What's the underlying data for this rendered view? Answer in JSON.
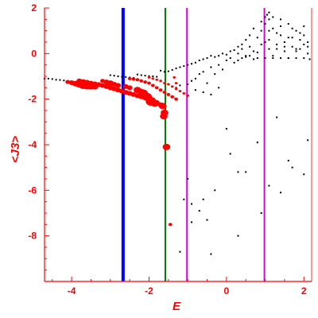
{
  "chart_data": {
    "type": "scatter",
    "title": "",
    "xlabel": "E",
    "ylabel": "<J3>",
    "xlim": [
      -4.7,
      2.2
    ],
    "ylim": [
      -10,
      2
    ],
    "x_ticks": [
      -4,
      -2,
      0,
      2
    ],
    "y_ticks": [
      2,
      0,
      -2,
      -4,
      -6,
      -8
    ],
    "x_tick_labels": [
      "-4",
      "-2",
      "0",
      "2"
    ],
    "y_tick_labels": [
      "2",
      "0",
      "-2",
      "-4",
      "-6",
      "-8"
    ],
    "grid": false,
    "legend": "none",
    "colors": {
      "axis": "#ff0000",
      "black_points": "#000000",
      "red_points": "#ff0000",
      "blue_line": "#0000ff",
      "green_line": "#007700",
      "magenta_line": "#dd00dd"
    },
    "vertical_lines": [
      {
        "x": -2.67,
        "color": "#0000ff"
      },
      {
        "x": -1.58,
        "color": "#007700"
      },
      {
        "x": -1.02,
        "color": "#dd00dd"
      },
      {
        "x": 0.98,
        "color": "#dd00dd"
      }
    ],
    "black_points": [
      [
        -4.7,
        -1.1
      ],
      [
        -4.6,
        -1.1
      ],
      [
        -4.5,
        -1.12
      ],
      [
        -4.4,
        -1.15
      ],
      [
        -4.3,
        -1.16
      ],
      [
        -4.2,
        -1.18
      ],
      [
        -4.1,
        -1.2
      ],
      [
        -3.0,
        -0.95
      ],
      [
        -2.9,
        -0.97
      ],
      [
        -2.8,
        -1.0
      ],
      [
        -2.7,
        -1.02
      ],
      [
        -2.6,
        -1.03
      ],
      [
        -2.5,
        -1.05
      ],
      [
        -2.4,
        -1.07
      ],
      [
        -2.3,
        -0.92
      ],
      [
        -2.2,
        -0.95
      ],
      [
        -2.1,
        -0.97
      ],
      [
        -2.0,
        -0.99
      ],
      [
        -1.9,
        -1.0
      ],
      [
        -1.8,
        -1.02
      ],
      [
        -1.7,
        -0.75
      ],
      [
        -1.6,
        -0.8
      ],
      [
        -1.5,
        -0.78
      ],
      [
        -1.4,
        -0.72
      ],
      [
        -1.3,
        -0.65
      ],
      [
        -1.2,
        -0.6
      ],
      [
        -1.1,
        -0.55
      ],
      [
        -1.0,
        -0.5
      ],
      [
        -0.9,
        -0.45
      ],
      [
        -0.8,
        -0.4
      ],
      [
        -0.7,
        -0.3
      ],
      [
        -0.6,
        -0.25
      ],
      [
        -0.5,
        -0.2
      ],
      [
        -0.4,
        -0.1
      ],
      [
        -1.3,
        -1.5
      ],
      [
        -1.2,
        -1.4
      ],
      [
        -1.0,
        -1.35
      ],
      [
        -0.9,
        -1.2
      ],
      [
        -0.8,
        -1.1
      ],
      [
        -0.7,
        -0.9
      ],
      [
        -0.6,
        -0.8
      ],
      [
        -0.5,
        -1.3
      ],
      [
        -0.4,
        -0.6
      ],
      [
        -0.3,
        -0.9
      ],
      [
        -0.2,
        -0.5
      ],
      [
        -0.1,
        -0.7
      ],
      [
        0.0,
        -0.3
      ],
      [
        0.1,
        -0.2
      ],
      [
        -0.3,
        -0.15
      ],
      [
        -0.2,
        -0.1
      ],
      [
        -0.1,
        0.0
      ],
      [
        0.0,
        -0.05
      ],
      [
        0.1,
        0.1
      ],
      [
        0.2,
        0.15
      ],
      [
        0.3,
        0.0
      ],
      [
        0.4,
        0.2
      ],
      [
        0.5,
        -0.1
      ],
      [
        0.6,
        0.3
      ],
      [
        0.7,
        0.1
      ],
      [
        0.8,
        -0.2
      ],
      [
        0.9,
        0.4
      ],
      [
        1.0,
        0.5
      ],
      [
        0.2,
        -0.4
      ],
      [
        0.3,
        -0.3
      ],
      [
        0.4,
        -0.2
      ],
      [
        0.5,
        -0.15
      ],
      [
        0.6,
        -0.1
      ],
      [
        0.7,
        -0.25
      ],
      [
        0.8,
        0.05
      ],
      [
        1.1,
        0.6
      ],
      [
        1.2,
        -0.1
      ],
      [
        1.3,
        0.2
      ],
      [
        1.4,
        0.8
      ],
      [
        1.5,
        0.3
      ],
      [
        1.6,
        -0.2
      ],
      [
        1.7,
        0.7
      ],
      [
        1.8,
        0.1
      ],
      [
        1.9,
        0.9
      ],
      [
        2.0,
        0.4
      ],
      [
        2.1,
        0.0
      ],
      [
        0.9,
        1.0
      ],
      [
        1.0,
        1.3
      ],
      [
        1.1,
        1.5
      ],
      [
        1.2,
        1.1
      ],
      [
        1.3,
        0.9
      ],
      [
        1.4,
        1.2
      ],
      [
        1.5,
        0.5
      ],
      [
        1.6,
        0.7
      ],
      [
        1.7,
        1.1
      ],
      [
        1.8,
        0.2
      ],
      [
        1.9,
        0.6
      ],
      [
        2.0,
        0.8
      ],
      [
        2.1,
        0.5
      ],
      [
        0.5,
        0.6
      ],
      [
        0.6,
        0.8
      ],
      [
        0.7,
        1.1
      ],
      [
        0.8,
        0.7
      ],
      [
        0.9,
        1.4
      ],
      [
        1.0,
        1.6
      ],
      [
        1.1,
        1.0
      ],
      [
        0.4,
        0.4
      ],
      [
        0.3,
        0.3
      ],
      [
        1.05,
        1.7
      ],
      [
        1.1,
        1.8
      ],
      [
        1.2,
        1.6
      ],
      [
        1.4,
        1.5
      ],
      [
        1.6,
        1.3
      ],
      [
        1.8,
        1.0
      ],
      [
        2.0,
        1.2
      ],
      [
        1.0,
        -0.2
      ],
      [
        1.2,
        -0.2
      ],
      [
        1.4,
        -0.2
      ],
      [
        1.6,
        -0.2
      ],
      [
        1.8,
        -0.2
      ],
      [
        2.0,
        -0.2
      ],
      [
        2.15,
        -0.25
      ],
      [
        1.1,
        0.2
      ],
      [
        1.3,
        0.4
      ],
      [
        1.5,
        0.1
      ],
      [
        1.7,
        0.3
      ],
      [
        1.9,
        0.2
      ],
      [
        2.1,
        0.3
      ],
      [
        -0.8,
        -1.6
      ],
      [
        -0.6,
        -1.7
      ],
      [
        -0.4,
        -1.8
      ],
      [
        -0.2,
        -1.5
      ],
      [
        0.0,
        -3.3
      ],
      [
        0.1,
        -4.4
      ],
      [
        0.3,
        -5.2
      ],
      [
        0.5,
        -5.2
      ],
      [
        0.8,
        -3.9
      ],
      [
        0.9,
        -7.0
      ],
      [
        1.1,
        -5.8
      ],
      [
        1.3,
        -2.8
      ],
      [
        1.6,
        -4.7
      ],
      [
        1.7,
        -5.0
      ],
      [
        1.4,
        -6.1
      ],
      [
        2.0,
        -5.3
      ],
      [
        2.1,
        -3.8
      ],
      [
        -1.0,
        -5.5
      ],
      [
        -1.1,
        -6.4
      ],
      [
        -0.9,
        -6.6
      ],
      [
        -0.6,
        -6.4
      ],
      [
        -0.5,
        -7.3
      ],
      [
        -0.3,
        -6.0
      ],
      [
        -0.7,
        -6.9
      ],
      [
        -1.2,
        -8.7
      ],
      [
        -0.4,
        -8.8
      ],
      [
        0.3,
        -8.0
      ],
      [
        -0.9,
        -7.4
      ]
    ],
    "red_points": [
      [
        -3.8,
        -1.2,
        3
      ],
      [
        -3.7,
        -1.23,
        3
      ],
      [
        -3.6,
        -1.26,
        3
      ],
      [
        -3.5,
        -1.3,
        3
      ],
      [
        -3.4,
        -1.33,
        3
      ],
      [
        -3.3,
        -1.36,
        3
      ],
      [
        -3.2,
        -1.4,
        3
      ],
      [
        -3.1,
        -1.45,
        3
      ],
      [
        -3.0,
        -1.5,
        3
      ],
      [
        -2.9,
        -1.55,
        3
      ],
      [
        -2.8,
        -1.6,
        3
      ],
      [
        -2.7,
        -1.65,
        3
      ],
      [
        -2.6,
        -1.7,
        3
      ],
      [
        -2.5,
        -1.75,
        3
      ],
      [
        -2.4,
        -1.8,
        3
      ],
      [
        -2.3,
        -1.85,
        3
      ],
      [
        -2.2,
        -1.9,
        3
      ],
      [
        -2.1,
        -1.95,
        3
      ],
      [
        -2.0,
        -2.0,
        3
      ],
      [
        -1.9,
        -2.05,
        3
      ],
      [
        -1.8,
        -2.15,
        3
      ],
      [
        -1.7,
        -2.25,
        3
      ],
      [
        -4.1,
        -1.25,
        2.5
      ],
      [
        -4.0,
        -1.28,
        3
      ],
      [
        -3.9,
        -1.32,
        3.5
      ],
      [
        -3.8,
        -1.36,
        4
      ],
      [
        -3.7,
        -1.4,
        4.5
      ],
      [
        -3.6,
        -1.42,
        4.5
      ],
      [
        -3.5,
        -1.44,
        4
      ],
      [
        -3.4,
        -1.46,
        3.5
      ],
      [
        -3.2,
        -1.2,
        2.5
      ],
      [
        -3.1,
        -1.25,
        3
      ],
      [
        -3.0,
        -1.3,
        3.5
      ],
      [
        -2.9,
        -1.35,
        3
      ],
      [
        -2.8,
        -1.4,
        3
      ],
      [
        -2.6,
        -1.45,
        3
      ],
      [
        -2.5,
        -1.5,
        3
      ],
      [
        -2.3,
        -1.6,
        4
      ],
      [
        -2.2,
        -1.65,
        3
      ],
      [
        -2.15,
        -1.75,
        5
      ],
      [
        -2.05,
        -1.9,
        5
      ],
      [
        -1.95,
        -2.1,
        5.5
      ],
      [
        -1.85,
        -2.2,
        4
      ],
      [
        -2.5,
        -1.1,
        2
      ],
      [
        -2.4,
        -1.12,
        2
      ],
      [
        -2.3,
        -1.15,
        2
      ],
      [
        -2.2,
        -1.2,
        2
      ],
      [
        -2.1,
        -1.25,
        2
      ],
      [
        -2.0,
        -1.3,
        2
      ],
      [
        -1.9,
        -1.4,
        2
      ],
      [
        -1.8,
        -1.5,
        2
      ],
      [
        -1.7,
        -1.6,
        2
      ],
      [
        -1.6,
        -1.7,
        2
      ],
      [
        -1.5,
        -1.8,
        2
      ],
      [
        -1.4,
        -1.9,
        2
      ],
      [
        -1.3,
        -2.0,
        2
      ],
      [
        -2.0,
        -1.05,
        1.5
      ],
      [
        -1.9,
        -1.1,
        1.5
      ],
      [
        -1.8,
        -1.15,
        1.5
      ],
      [
        -1.7,
        -1.2,
        1.5
      ],
      [
        -1.6,
        -1.3,
        1.5
      ],
      [
        -1.5,
        -1.35,
        1.5
      ],
      [
        -1.4,
        -1.45,
        1.5
      ],
      [
        -1.3,
        -1.55,
        1.5
      ],
      [
        -1.2,
        -1.65,
        1.5
      ],
      [
        -1.1,
        -1.75,
        1.5
      ],
      [
        -1.0,
        -1.85,
        1.5
      ],
      [
        -1.65,
        -2.3,
        4
      ],
      [
        -1.6,
        -2.6,
        4
      ],
      [
        -1.62,
        -2.75,
        4
      ],
      [
        -1.55,
        -4.1,
        4
      ],
      [
        -1.45,
        -7.5,
        2
      ],
      [
        -1.35,
        -1.05,
        1.5
      ],
      [
        -1.3,
        -1.3,
        1.5
      ]
    ]
  }
}
